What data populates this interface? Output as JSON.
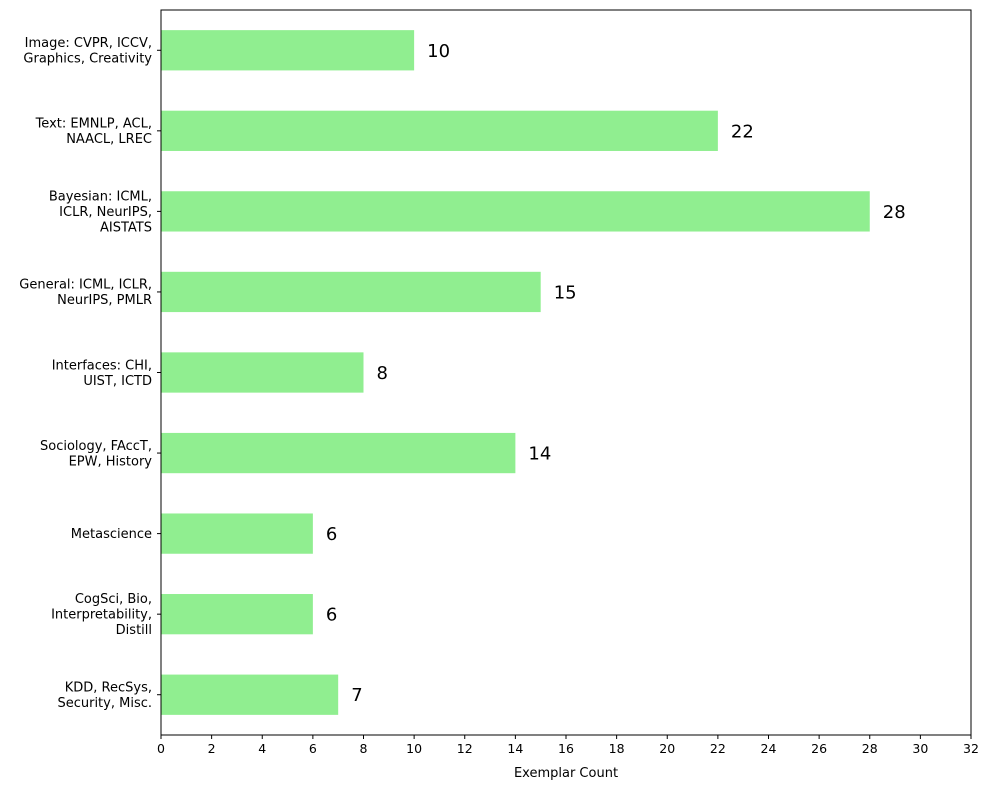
{
  "chart_data": {
    "type": "bar",
    "orientation": "horizontal",
    "categories": [
      [
        "Image: CVPR, ICCV,",
        "Graphics, Creativity"
      ],
      [
        "Text: EMNLP, ACL,",
        "NAACL, LREC"
      ],
      [
        "Bayesian: ICML,",
        "ICLR, NeurIPS,",
        "AISTATS"
      ],
      [
        "General: ICML, ICLR,",
        "NeurIPS, PMLR"
      ],
      [
        "Interfaces: CHI,",
        "UIST, ICTD"
      ],
      [
        "Sociology, FAccT,",
        "EPW, History"
      ],
      [
        "Metascience"
      ],
      [
        "CogSci, Bio,",
        "Interpretability,",
        "Distill"
      ],
      [
        "KDD, RecSys,",
        "Security, Misc."
      ]
    ],
    "values": [
      10,
      22,
      28,
      15,
      8,
      14,
      6,
      6,
      7
    ],
    "value_labels": [
      "10",
      "22",
      "28",
      "15",
      "8",
      "14",
      "6",
      "6",
      "7"
    ],
    "xlabel": "Exemplar Count",
    "ylabel": "",
    "title": "",
    "xlim": [
      0,
      32
    ],
    "xticks": [
      0,
      2,
      4,
      6,
      8,
      10,
      12,
      14,
      16,
      18,
      20,
      22,
      24,
      26,
      28,
      30,
      32
    ],
    "bar_color": "#90ee90",
    "grid": false,
    "legend": "none"
  }
}
